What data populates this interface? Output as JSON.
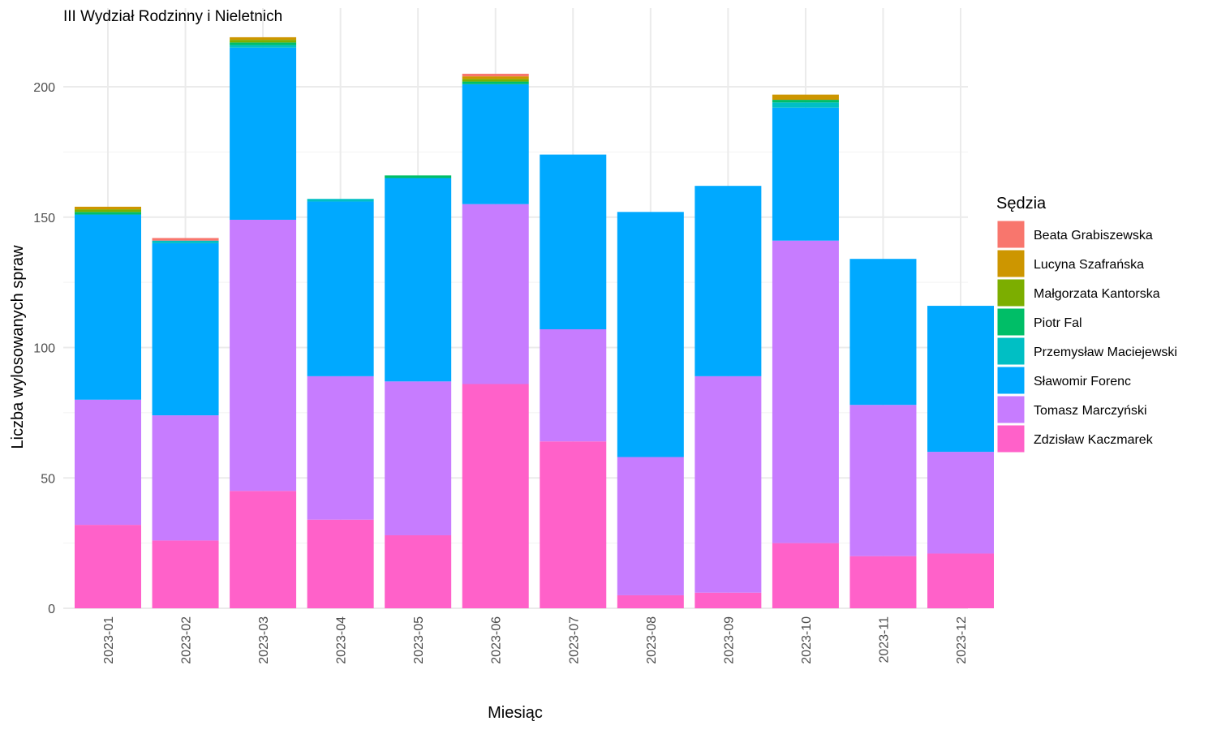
{
  "chart_data": {
    "type": "bar",
    "stacked": true,
    "title": "III Wydział Rodzinny i Nieletnich",
    "xlabel": "Miesiąc",
    "ylabel": "Liczba wylosowanych spraw",
    "ylim": [
      0,
      220
    ],
    "yticks": [
      0,
      50,
      100,
      150,
      200
    ],
    "grid": true,
    "legend_position": "right",
    "legend_title": "Sędzia",
    "categories": [
      "2023-01",
      "2023-02",
      "2023-03",
      "2023-04",
      "2023-05",
      "2023-06",
      "2023-07",
      "2023-08",
      "2023-09",
      "2023-10",
      "2023-11",
      "2023-12"
    ],
    "series": [
      {
        "name": "Zdzisław Kaczmarek",
        "color": "#FF61C9",
        "values": [
          32,
          26,
          45,
          34,
          28,
          86,
          64,
          5,
          6,
          25,
          20,
          21
        ]
      },
      {
        "name": "Tomasz Marczyński",
        "color": "#C77CFF",
        "values": [
          48,
          48,
          104,
          55,
          59,
          69,
          43,
          53,
          83,
          116,
          58,
          39
        ]
      },
      {
        "name": "Sławomir Forenc",
        "color": "#00A9FF",
        "values": [
          71,
          66,
          66,
          67,
          78,
          46,
          67,
          94,
          73,
          51,
          56,
          56
        ]
      },
      {
        "name": "Przemysław Maciejewski",
        "color": "#00BFC4",
        "values": [
          0,
          1,
          1,
          1,
          0,
          0,
          0,
          0,
          0,
          2,
          0,
          0
        ]
      },
      {
        "name": "Piotr Fal",
        "color": "#00BE67",
        "values": [
          1,
          0,
          1,
          0,
          1,
          1,
          0,
          0,
          0,
          1,
          0,
          0
        ]
      },
      {
        "name": "Małgorzata Kantorska",
        "color": "#7CAE00",
        "values": [
          1,
          0,
          1,
          0,
          0,
          1,
          0,
          0,
          0,
          0,
          0,
          0
        ]
      },
      {
        "name": "Lucyna Szafrańska",
        "color": "#CD9600",
        "values": [
          1,
          0,
          1,
          0,
          0,
          1,
          0,
          0,
          0,
          2,
          0,
          0
        ]
      },
      {
        "name": "Beata Grabiszewska",
        "color": "#F8766D",
        "values": [
          0,
          1,
          0,
          0,
          0,
          1,
          0,
          0,
          0,
          0,
          0,
          0
        ]
      }
    ]
  }
}
